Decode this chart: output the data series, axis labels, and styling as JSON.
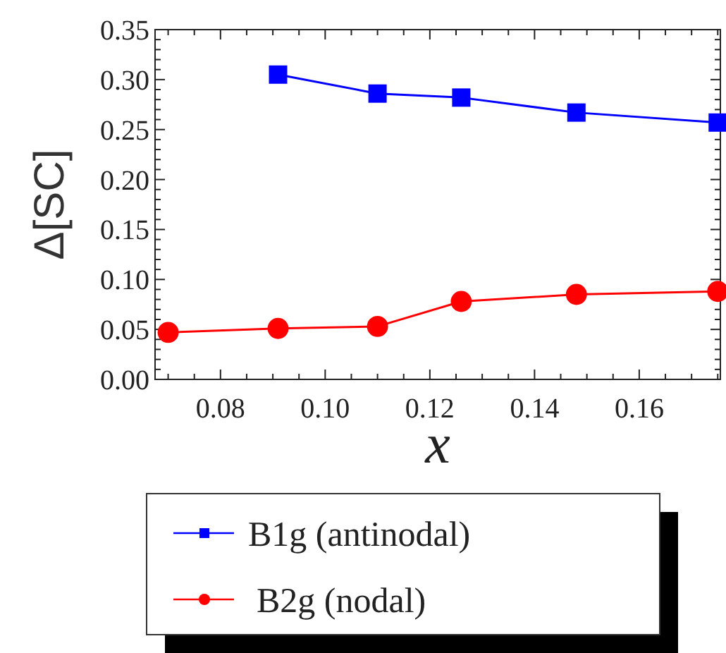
{
  "chart_data": {
    "type": "line",
    "xlabel": "x",
    "ylabel": "Δ[SC]",
    "xlim": [
      0.0675,
      0.1755
    ],
    "xticks": [
      {
        "value": 0.08,
        "label": "0.08"
      },
      {
        "value": 0.1,
        "label": "0.10"
      },
      {
        "value": 0.12,
        "label": "0.12"
      },
      {
        "value": 0.14,
        "label": "0.14"
      },
      {
        "value": 0.16,
        "label": "0.16"
      }
    ],
    "ylim": [
      0,
      0.35
    ],
    "yticks": [
      {
        "value": 0,
        "label": "0.00"
      },
      {
        "value": 0.05,
        "label": "0.05"
      },
      {
        "value": 0.1,
        "label": "0.10"
      },
      {
        "value": 0.15,
        "label": "0.15"
      },
      {
        "value": 0.2,
        "label": "0.20"
      },
      {
        "value": 0.25,
        "label": "0.25"
      },
      {
        "value": 0.3,
        "label": "0.30"
      },
      {
        "value": 0.35,
        "label": "0.35"
      }
    ],
    "grid": false,
    "legend": "bottom",
    "line_style": "solid",
    "series": [
      {
        "name": "B1g (antinodal)",
        "color": "#0000ff",
        "marker": "square",
        "x": [
          0.091,
          0.11,
          0.126,
          0.148,
          0.175
        ],
        "values": [
          0.305,
          0.286,
          0.282,
          0.267,
          0.257
        ]
      },
      {
        "name": "B2g (nodal)",
        "color": "#ff0000",
        "marker": "circle",
        "x": [
          0.07,
          0.091,
          0.11,
          0.126,
          0.148,
          0.175
        ],
        "values": [
          0.047,
          0.051,
          0.053,
          0.078,
          0.085,
          0.088
        ]
      }
    ]
  }
}
